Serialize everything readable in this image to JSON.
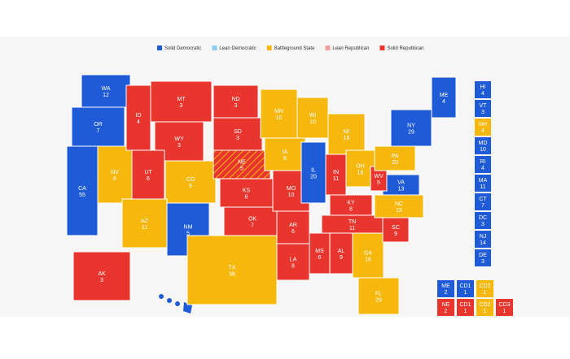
{
  "legend": [
    {
      "label": "Solid Democratic",
      "color": "#1f5bd6"
    },
    {
      "label": "Lean Democratic",
      "color": "#8ecff0"
    },
    {
      "label": "Battleground State",
      "color": "#f6b80c"
    },
    {
      "label": "Lean Republican",
      "color": "#f2a0a0"
    },
    {
      "label": "Solid Republican",
      "color": "#e8362f"
    }
  ],
  "states": [
    {
      "abbr": "WA",
      "votes": 12,
      "color": "#1f5bd6"
    },
    {
      "abbr": "OR",
      "votes": 7,
      "color": "#1f5bd6"
    },
    {
      "abbr": "CA",
      "votes": 55,
      "color": "#1f5bd6"
    },
    {
      "abbr": "NV",
      "votes": 6,
      "color": "#f6b80c"
    },
    {
      "abbr": "ID",
      "votes": 4,
      "color": "#e8362f"
    },
    {
      "abbr": "MT",
      "votes": 3,
      "color": "#e8362f"
    },
    {
      "abbr": "WY",
      "votes": 3,
      "color": "#e8362f"
    },
    {
      "abbr": "UT",
      "votes": 6,
      "color": "#e8362f"
    },
    {
      "abbr": "CO",
      "votes": 9,
      "color": "#f6b80c"
    },
    {
      "abbr": "AZ",
      "votes": 11,
      "color": "#f6b80c"
    },
    {
      "abbr": "NM",
      "votes": 5,
      "color": "#1f5bd6"
    },
    {
      "abbr": "ND",
      "votes": 3,
      "color": "#e8362f"
    },
    {
      "abbr": "SD",
      "votes": 3,
      "color": "#e8362f"
    },
    {
      "abbr": "NE",
      "votes": 5,
      "color": "#e8362f"
    },
    {
      "abbr": "KS",
      "votes": 6,
      "color": "#e8362f"
    },
    {
      "abbr": "OK",
      "votes": 7,
      "color": "#e8362f"
    },
    {
      "abbr": "TX",
      "votes": 38,
      "color": "#f6b80c"
    },
    {
      "abbr": "MN",
      "votes": 10,
      "color": "#f6b80c"
    },
    {
      "abbr": "IA",
      "votes": 6,
      "color": "#f6b80c"
    },
    {
      "abbr": "MO",
      "votes": 10,
      "color": "#e8362f"
    },
    {
      "abbr": "AR",
      "votes": 6,
      "color": "#e8362f"
    },
    {
      "abbr": "LA",
      "votes": 8,
      "color": "#e8362f"
    },
    {
      "abbr": "WI",
      "votes": 10,
      "color": "#f6b80c"
    },
    {
      "abbr": "IL",
      "votes": 20,
      "color": "#1f5bd6"
    },
    {
      "abbr": "MI",
      "votes": 16,
      "color": "#f6b80c"
    },
    {
      "abbr": "IN",
      "votes": 11,
      "color": "#e8362f"
    },
    {
      "abbr": "OH",
      "votes": 18,
      "color": "#f6b80c"
    },
    {
      "abbr": "KY",
      "votes": 8,
      "color": "#e8362f"
    },
    {
      "abbr": "TN",
      "votes": 11,
      "color": "#e8362f"
    },
    {
      "abbr": "MS",
      "votes": 6,
      "color": "#e8362f"
    },
    {
      "abbr": "AL",
      "votes": 9,
      "color": "#e8362f"
    },
    {
      "abbr": "GA",
      "votes": 16,
      "color": "#f6b80c"
    },
    {
      "abbr": "FL",
      "votes": 29,
      "color": "#f6b80c"
    },
    {
      "abbr": "SC",
      "votes": 9,
      "color": "#e8362f"
    },
    {
      "abbr": "NC",
      "votes": 15,
      "color": "#f6b80c"
    },
    {
      "abbr": "VA",
      "votes": 13,
      "color": "#1f5bd6"
    },
    {
      "abbr": "WV",
      "votes": 5,
      "color": "#e8362f"
    },
    {
      "abbr": "PA",
      "votes": 20,
      "color": "#f6b80c"
    },
    {
      "abbr": "NY",
      "votes": 29,
      "color": "#1f5bd6"
    },
    {
      "abbr": "ME",
      "votes": 4,
      "color": "#1f5bd6"
    },
    {
      "abbr": "AK",
      "votes": 3,
      "color": "#e8362f"
    }
  ],
  "small_states": [
    {
      "abbr": "HI",
      "votes": 4,
      "color": "#1f5bd6"
    },
    {
      "abbr": "VT",
      "votes": 3,
      "color": "#1f5bd6"
    },
    {
      "abbr": "NH",
      "votes": 4,
      "color": "#f6b80c"
    },
    {
      "abbr": "MD",
      "votes": 10,
      "color": "#1f5bd6"
    },
    {
      "abbr": "RI",
      "votes": 4,
      "color": "#1f5bd6"
    },
    {
      "abbr": "MA",
      "votes": 11,
      "color": "#1f5bd6"
    },
    {
      "abbr": "CT",
      "votes": 7,
      "color": "#1f5bd6"
    },
    {
      "abbr": "DC",
      "votes": 3,
      "color": "#1f5bd6"
    },
    {
      "abbr": "NJ",
      "votes": 14,
      "color": "#1f5bd6"
    },
    {
      "abbr": "DE",
      "votes": 3,
      "color": "#1f5bd6"
    }
  ],
  "districts": [
    [
      {
        "abbr": "ME",
        "votes": 2,
        "color": "#1f5bd6"
      },
      {
        "abbr": "CD1",
        "votes": 1,
        "color": "#1f5bd6"
      },
      {
        "abbr": "CD2",
        "votes": 1,
        "color": "#f6b80c"
      }
    ],
    [
      {
        "abbr": "NE",
        "votes": 2,
        "color": "#e8362f"
      },
      {
        "abbr": "CD1",
        "votes": 1,
        "color": "#e8362f"
      },
      {
        "abbr": "CD2",
        "votes": 1,
        "color": "#f6b80c"
      },
      {
        "abbr": "CD3",
        "votes": 1,
        "color": "#e8362f"
      }
    ]
  ]
}
